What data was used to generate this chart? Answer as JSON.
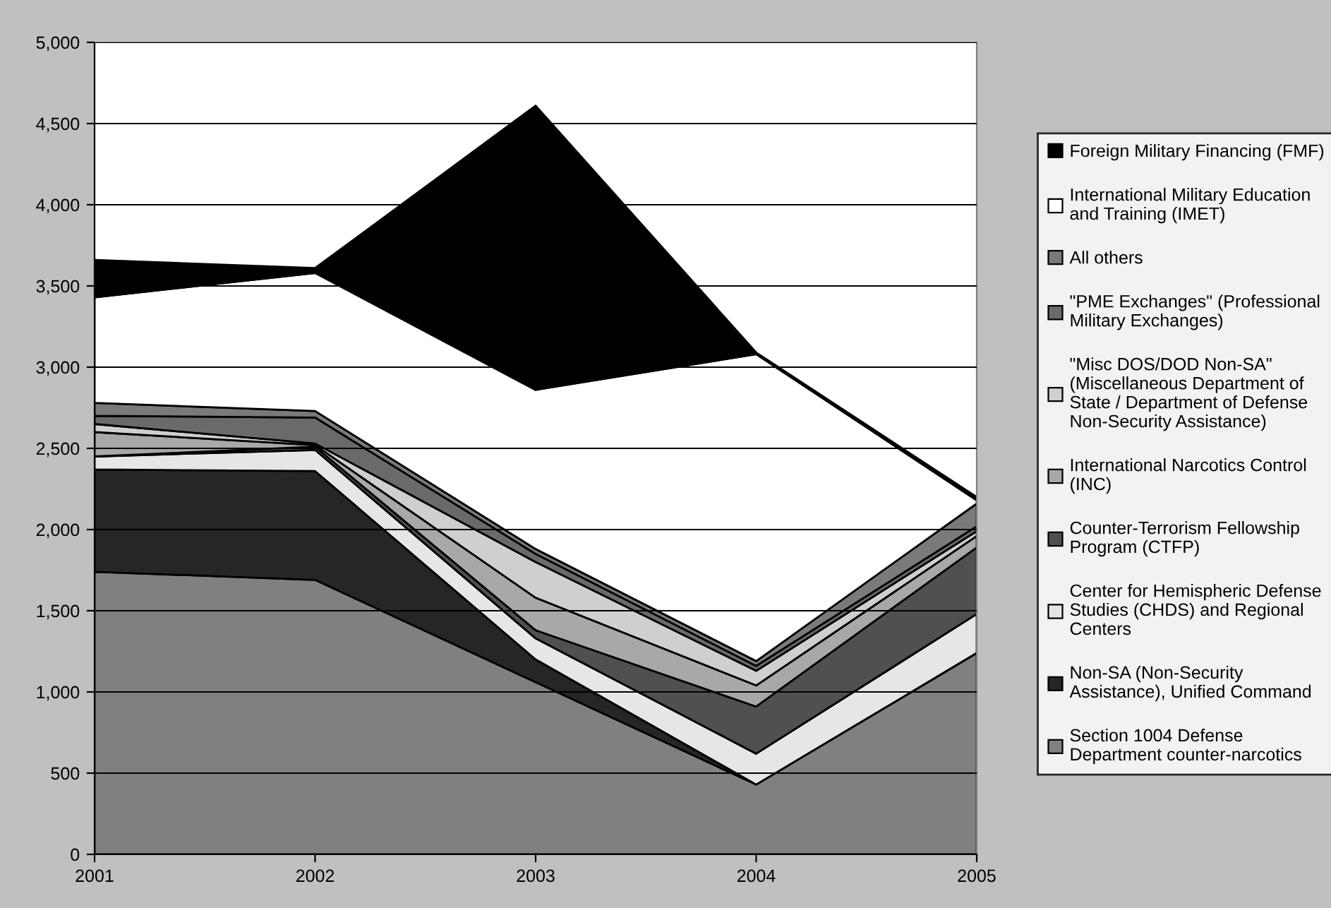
{
  "chart_data": {
    "type": "area",
    "stacked": true,
    "categories": [
      "2001",
      "2002",
      "2003",
      "2004",
      "2005"
    ],
    "ylim": [
      0,
      5000
    ],
    "yticks": [
      {
        "value": 0,
        "label": "0"
      },
      {
        "value": 500,
        "label": "500"
      },
      {
        "value": 1000,
        "label": "1,000"
      },
      {
        "value": 1500,
        "label": "1,500"
      },
      {
        "value": 2000,
        "label": "2,000"
      },
      {
        "value": 2500,
        "label": "2,500"
      },
      {
        "value": 3000,
        "label": "3,000"
      },
      {
        "value": 3500,
        "label": "3,500"
      },
      {
        "value": 4000,
        "label": "4,000"
      },
      {
        "value": 4500,
        "label": "4,500"
      },
      {
        "value": 5000,
        "label": "5,000"
      }
    ],
    "grid": "y",
    "legend": "right",
    "series": [
      {
        "name": "Section 1004 Defense\nDepartment counter-narcotics",
        "color": "#808080",
        "values": [
          1740,
          1690,
          1060,
          430,
          1240
        ]
      },
      {
        "name": "Non-SA (Non-Security\nAssistance), Unified Command",
        "color": "#262626",
        "values": [
          630,
          670,
          140,
          0,
          0
        ]
      },
      {
        "name": "Center for Hemispheric Defense\nStudies (CHDS) and Regional\nCenters",
        "color": "#e6e6e6",
        "values": [
          80,
          130,
          130,
          190,
          240
        ]
      },
      {
        "name": "Counter-Terrorism Fellowship\nProgram (CTFP)",
        "color": "#505050",
        "values": [
          0,
          20,
          50,
          290,
          410
        ]
      },
      {
        "name": "International Narcotics Control\n(INC)",
        "color": "#a8a8a8",
        "values": [
          150,
          10,
          200,
          130,
          70
        ]
      },
      {
        "name": "\"Misc DOS/DOD Non-SA\"\n(Miscellaneous Department of\nState / Department of Defense\nNon-Security Assistance)",
        "color": "#cfcfcf",
        "values": [
          50,
          10,
          220,
          90,
          30
        ]
      },
      {
        "name": "\"PME Exchanges\" (Professional\nMilitary Exchanges)",
        "color": "#6a6a6a",
        "values": [
          50,
          160,
          50,
          30,
          30
        ]
      },
      {
        "name": "All others",
        "color": "#7a7a7a",
        "values": [
          80,
          40,
          30,
          30,
          140
        ]
      },
      {
        "name": "International Military Education\nand Training (IMET)",
        "color": "#ffffff",
        "values": [
          650,
          850,
          980,
          1890,
          20
        ]
      },
      {
        "name": "Foreign Military Financing (FMF)",
        "color": "#000000",
        "values": [
          230,
          30,
          1750,
          10,
          20
        ]
      }
    ]
  }
}
